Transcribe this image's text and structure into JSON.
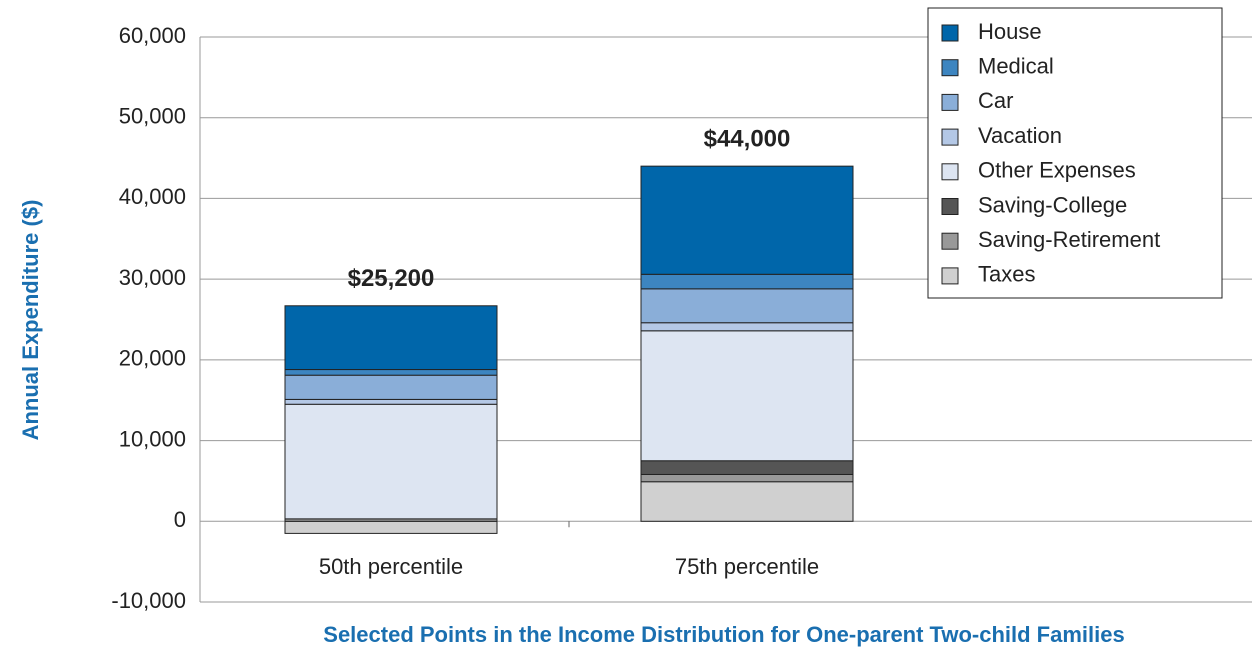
{
  "chart_data": {
    "type": "stacked_bar",
    "ylabel": "Annual Expenditure ($)",
    "xlabel": "Selected Points in the Income Distribution for One-parent Two-child Families",
    "categories": [
      "50th percentile",
      "75th percentile"
    ],
    "series": [
      {
        "name": "Taxes",
        "color": "#d0d0d0",
        "values": [
          -1500,
          4900
        ]
      },
      {
        "name": "Saving-Retirement",
        "color": "#999999",
        "values": [
          300,
          900
        ]
      },
      {
        "name": "Saving-College",
        "color": "#555555",
        "values": [
          0,
          1700
        ]
      },
      {
        "name": "Other Expenses",
        "color": "#dde5f2",
        "values": [
          14200,
          16100
        ]
      },
      {
        "name": "Vacation",
        "color": "#b4c8e6",
        "values": [
          600,
          1000
        ]
      },
      {
        "name": "Car",
        "color": "#8aaed8",
        "values": [
          3000,
          4200
        ]
      },
      {
        "name": "Medical",
        "color": "#3d85c0",
        "values": [
          700,
          1800
        ]
      },
      {
        "name": "House",
        "color": "#0066aa",
        "values": [
          7900,
          13400
        ]
      }
    ],
    "totals": {
      "values": [
        25200,
        44000
      ],
      "value_labels": [
        "$25,200",
        "$44,000"
      ]
    },
    "ylim": [
      -10000,
      60000
    ],
    "yticks": [
      {
        "value": -10000,
        "label": "-10,000"
      },
      0,
      {
        "value": 10000,
        "label": "10,000"
      },
      {
        "value": 20000,
        "label": "20,000"
      },
      {
        "value": 30000,
        "label": "30,000"
      },
      {
        "value": 40000,
        "label": "40,000"
      },
      {
        "value": 50000,
        "label": "50,000"
      },
      {
        "value": 60000,
        "label": "60,000"
      }
    ],
    "grid": true,
    "legend": "upper right"
  }
}
